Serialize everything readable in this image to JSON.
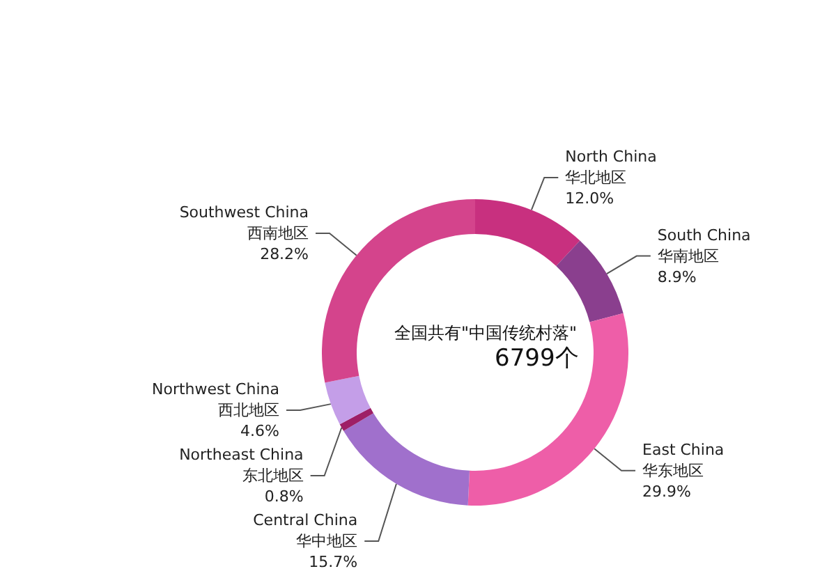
{
  "chart_data": {
    "type": "donut",
    "categories": [
      "North China\n华北地区",
      "South China\n华南地区",
      "East China\n华东地区",
      "Central China\n华中地区",
      "Northeast China\n东北地区",
      "Northwest China\n西北地区",
      "Southwest China\n西南地区"
    ],
    "values": [
      12.0,
      8.9,
      29.9,
      15.7,
      0.8,
      4.6,
      28.2
    ],
    "value_labels": [
      "12.0%",
      "8.9%",
      "29.9%",
      "15.7%",
      "0.8%",
      "4.6%",
      "28.2%"
    ],
    "colors": [
      "#c8307f",
      "#8a3f8e",
      "#ee5ea8",
      "#a070cc",
      "#9e1f66",
      "#c49ee8",
      "#d4448c"
    ],
    "annotations": [
      "全国共有\"中国传统村落\"",
      "6799个"
    ],
    "legend": false
  }
}
